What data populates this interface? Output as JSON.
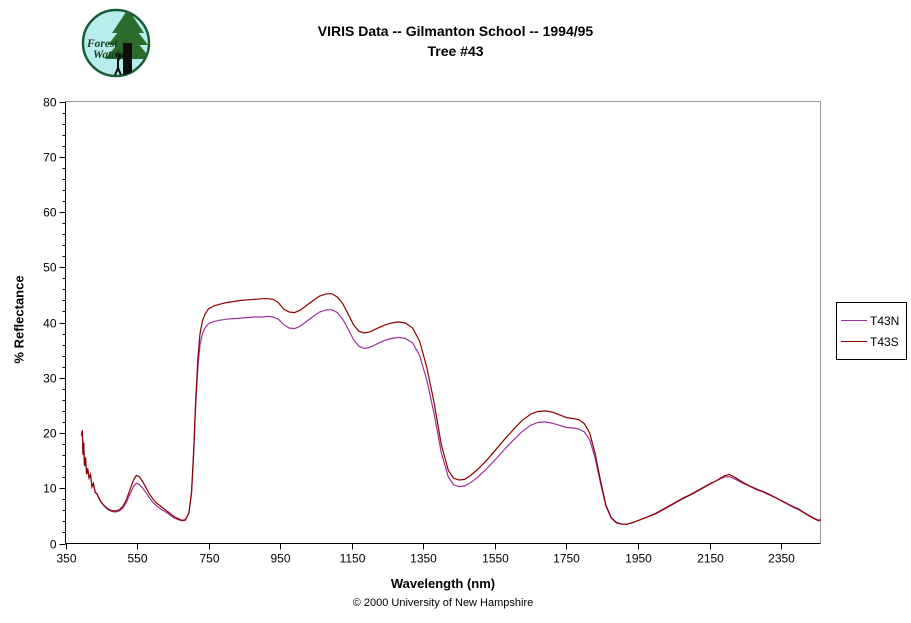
{
  "title": {
    "line1": "VIRIS Data -- Gilmanton School -- 1994/95",
    "line2": "Tree #43"
  },
  "logo": {
    "text_line1": "Forest",
    "text_line2": "Watch",
    "circle_fill": "#b9ecec",
    "ring_color": "#1a5c38",
    "foliage_color": "#2d6b2d"
  },
  "footer": {
    "text": "© 2000 University of New Hampshire"
  },
  "chart_data": {
    "type": "line",
    "title": "VIRIS Data -- Gilmanton School -- 1994/95 / Tree #43",
    "xlabel": "Wavelength (nm)",
    "ylabel": "% Reflectance",
    "xlim": [
      350,
      2460
    ],
    "ylim": [
      0,
      80
    ],
    "x_ticks": [
      350,
      550,
      750,
      950,
      1150,
      1350,
      1550,
      1750,
      1950,
      2150,
      2350
    ],
    "y_ticks": [
      0,
      10,
      20,
      30,
      40,
      50,
      60,
      70,
      80
    ],
    "y_minor_step": 2,
    "grid": false,
    "border_color": "#999999",
    "legend": {
      "position": "right-outside"
    },
    "series": [
      {
        "name": "T43N",
        "color": "#993399",
        "points": [
          [
            395,
            19.5
          ],
          [
            397,
            20.4
          ],
          [
            399,
            16.0
          ],
          [
            401,
            18.2
          ],
          [
            403,
            14.0
          ],
          [
            406,
            15.5
          ],
          [
            409,
            12.5
          ],
          [
            412,
            13.5
          ],
          [
            416,
            11.8
          ],
          [
            420,
            12.4
          ],
          [
            424,
            10.2
          ],
          [
            428,
            10.8
          ],
          [
            433,
            9.2
          ],
          [
            438,
            8.9
          ],
          [
            443,
            8.2
          ],
          [
            448,
            7.6
          ],
          [
            455,
            7.0
          ],
          [
            462,
            6.5
          ],
          [
            470,
            6.1
          ],
          [
            480,
            5.8
          ],
          [
            490,
            5.7
          ],
          [
            500,
            5.9
          ],
          [
            510,
            6.4
          ],
          [
            520,
            7.4
          ],
          [
            530,
            8.9
          ],
          [
            540,
            10.3
          ],
          [
            548,
            10.9
          ],
          [
            556,
            10.7
          ],
          [
            565,
            10.1
          ],
          [
            575,
            9.2
          ],
          [
            585,
            8.2
          ],
          [
            595,
            7.4
          ],
          [
            605,
            6.8
          ],
          [
            615,
            6.3
          ],
          [
            625,
            5.9
          ],
          [
            635,
            5.5
          ],
          [
            645,
            5.0
          ],
          [
            655,
            4.6
          ],
          [
            665,
            4.3
          ],
          [
            675,
            4.1
          ],
          [
            685,
            4.2
          ],
          [
            695,
            5.5
          ],
          [
            702,
            9.0
          ],
          [
            708,
            16.0
          ],
          [
            714,
            25.0
          ],
          [
            720,
            32.0
          ],
          [
            726,
            36.0
          ],
          [
            733,
            38.0
          ],
          [
            740,
            39.0
          ],
          [
            750,
            39.8
          ],
          [
            765,
            40.2
          ],
          [
            780,
            40.4
          ],
          [
            800,
            40.6
          ],
          [
            820,
            40.7
          ],
          [
            840,
            40.8
          ],
          [
            860,
            40.9
          ],
          [
            880,
            41.0
          ],
          [
            900,
            41.0
          ],
          [
            915,
            41.1
          ],
          [
            930,
            41.0
          ],
          [
            945,
            40.6
          ],
          [
            960,
            39.6
          ],
          [
            975,
            39.0
          ],
          [
            990,
            38.9
          ],
          [
            1005,
            39.3
          ],
          [
            1020,
            40.0
          ],
          [
            1040,
            41.0
          ],
          [
            1060,
            41.9
          ],
          [
            1080,
            42.3
          ],
          [
            1095,
            42.3
          ],
          [
            1110,
            41.8
          ],
          [
            1125,
            40.6
          ],
          [
            1140,
            38.8
          ],
          [
            1155,
            36.9
          ],
          [
            1170,
            35.7
          ],
          [
            1185,
            35.3
          ],
          [
            1200,
            35.5
          ],
          [
            1220,
            36.1
          ],
          [
            1240,
            36.7
          ],
          [
            1260,
            37.1
          ],
          [
            1280,
            37.3
          ],
          [
            1300,
            37.1
          ],
          [
            1320,
            36.3
          ],
          [
            1340,
            34.0
          ],
          [
            1360,
            29.5
          ],
          [
            1380,
            23.5
          ],
          [
            1400,
            16.5
          ],
          [
            1420,
            12.0
          ],
          [
            1435,
            10.6
          ],
          [
            1450,
            10.3
          ],
          [
            1465,
            10.4
          ],
          [
            1480,
            10.9
          ],
          [
            1500,
            11.9
          ],
          [
            1525,
            13.4
          ],
          [
            1550,
            15.1
          ],
          [
            1575,
            16.9
          ],
          [
            1600,
            18.6
          ],
          [
            1625,
            20.2
          ],
          [
            1650,
            21.4
          ],
          [
            1670,
            21.9
          ],
          [
            1690,
            22.0
          ],
          [
            1710,
            21.8
          ],
          [
            1730,
            21.4
          ],
          [
            1750,
            21.0
          ],
          [
            1770,
            20.9
          ],
          [
            1785,
            20.7
          ],
          [
            1800,
            20.2
          ],
          [
            1815,
            18.8
          ],
          [
            1830,
            15.5
          ],
          [
            1845,
            11.0
          ],
          [
            1860,
            6.8
          ],
          [
            1875,
            4.6
          ],
          [
            1890,
            3.7
          ],
          [
            1905,
            3.5
          ],
          [
            1920,
            3.5
          ],
          [
            1940,
            3.9
          ],
          [
            1960,
            4.4
          ],
          [
            1980,
            4.9
          ],
          [
            2000,
            5.5
          ],
          [
            2025,
            6.4
          ],
          [
            2050,
            7.3
          ],
          [
            2075,
            8.2
          ],
          [
            2100,
            9.0
          ],
          [
            2125,
            9.9
          ],
          [
            2150,
            10.8
          ],
          [
            2170,
            11.4
          ],
          [
            2190,
            12.0
          ],
          [
            2205,
            12.1
          ],
          [
            2220,
            11.7
          ],
          [
            2240,
            11.0
          ],
          [
            2260,
            10.4
          ],
          [
            2280,
            9.8
          ],
          [
            2300,
            9.3
          ],
          [
            2320,
            8.7
          ],
          [
            2340,
            8.1
          ],
          [
            2360,
            7.5
          ],
          [
            2380,
            6.8
          ],
          [
            2400,
            6.2
          ],
          [
            2415,
            5.6
          ],
          [
            2430,
            5.0
          ],
          [
            2445,
            4.5
          ],
          [
            2455,
            4.2
          ],
          [
            2460,
            4.4
          ]
        ]
      },
      {
        "name": "T43S",
        "color": "#8B0000",
        "points": [
          [
            395,
            19.5
          ],
          [
            397,
            20.5
          ],
          [
            399,
            16.1
          ],
          [
            401,
            18.3
          ],
          [
            403,
            14.1
          ],
          [
            406,
            15.6
          ],
          [
            409,
            12.6
          ],
          [
            412,
            13.6
          ],
          [
            416,
            11.9
          ],
          [
            420,
            12.5
          ],
          [
            424,
            10.3
          ],
          [
            428,
            10.9
          ],
          [
            433,
            9.3
          ],
          [
            438,
            9.0
          ],
          [
            443,
            8.3
          ],
          [
            448,
            7.7
          ],
          [
            455,
            7.1
          ],
          [
            462,
            6.6
          ],
          [
            470,
            6.2
          ],
          [
            480,
            5.9
          ],
          [
            490,
            5.9
          ],
          [
            500,
            6.1
          ],
          [
            510,
            6.7
          ],
          [
            520,
            7.9
          ],
          [
            530,
            9.7
          ],
          [
            540,
            11.5
          ],
          [
            548,
            12.3
          ],
          [
            556,
            12.1
          ],
          [
            565,
            11.3
          ],
          [
            575,
            10.1
          ],
          [
            585,
            8.9
          ],
          [
            595,
            8.0
          ],
          [
            605,
            7.3
          ],
          [
            615,
            6.8
          ],
          [
            625,
            6.3
          ],
          [
            635,
            5.8
          ],
          [
            645,
            5.3
          ],
          [
            655,
            4.8
          ],
          [
            665,
            4.5
          ],
          [
            675,
            4.2
          ],
          [
            685,
            4.3
          ],
          [
            695,
            5.6
          ],
          [
            702,
            9.2
          ],
          [
            708,
            16.5
          ],
          [
            714,
            26.0
          ],
          [
            720,
            33.5
          ],
          [
            726,
            38.0
          ],
          [
            733,
            40.3
          ],
          [
            740,
            41.5
          ],
          [
            750,
            42.5
          ],
          [
            765,
            43.0
          ],
          [
            780,
            43.3
          ],
          [
            800,
            43.6
          ],
          [
            820,
            43.8
          ],
          [
            840,
            44.0
          ],
          [
            860,
            44.1
          ],
          [
            880,
            44.2
          ],
          [
            900,
            44.3
          ],
          [
            915,
            44.3
          ],
          [
            930,
            44.2
          ],
          [
            945,
            43.6
          ],
          [
            960,
            42.4
          ],
          [
            975,
            41.9
          ],
          [
            990,
            41.8
          ],
          [
            1005,
            42.2
          ],
          [
            1020,
            42.9
          ],
          [
            1040,
            43.9
          ],
          [
            1060,
            44.8
          ],
          [
            1080,
            45.2
          ],
          [
            1095,
            45.2
          ],
          [
            1110,
            44.6
          ],
          [
            1125,
            43.4
          ],
          [
            1140,
            41.5
          ],
          [
            1155,
            39.6
          ],
          [
            1170,
            38.4
          ],
          [
            1185,
            38.1
          ],
          [
            1200,
            38.3
          ],
          [
            1220,
            38.9
          ],
          [
            1240,
            39.5
          ],
          [
            1260,
            39.9
          ],
          [
            1280,
            40.1
          ],
          [
            1300,
            39.9
          ],
          [
            1320,
            39.0
          ],
          [
            1340,
            36.6
          ],
          [
            1360,
            31.8
          ],
          [
            1380,
            25.5
          ],
          [
            1400,
            18.0
          ],
          [
            1420,
            13.2
          ],
          [
            1435,
            11.8
          ],
          [
            1450,
            11.5
          ],
          [
            1465,
            11.6
          ],
          [
            1480,
            12.2
          ],
          [
            1500,
            13.3
          ],
          [
            1525,
            14.9
          ],
          [
            1550,
            16.8
          ],
          [
            1575,
            18.7
          ],
          [
            1600,
            20.5
          ],
          [
            1625,
            22.2
          ],
          [
            1650,
            23.4
          ],
          [
            1670,
            23.9
          ],
          [
            1690,
            24.0
          ],
          [
            1710,
            23.8
          ],
          [
            1730,
            23.3
          ],
          [
            1750,
            22.8
          ],
          [
            1770,
            22.6
          ],
          [
            1785,
            22.4
          ],
          [
            1800,
            21.7
          ],
          [
            1815,
            20.0
          ],
          [
            1830,
            16.3
          ],
          [
            1845,
            11.5
          ],
          [
            1860,
            7.0
          ],
          [
            1875,
            4.7
          ],
          [
            1890,
            3.8
          ],
          [
            1905,
            3.5
          ],
          [
            1920,
            3.5
          ],
          [
            1940,
            3.9
          ],
          [
            1960,
            4.4
          ],
          [
            1980,
            4.9
          ],
          [
            2000,
            5.4
          ],
          [
            2025,
            6.3
          ],
          [
            2050,
            7.2
          ],
          [
            2075,
            8.1
          ],
          [
            2100,
            8.9
          ],
          [
            2125,
            9.8
          ],
          [
            2150,
            10.7
          ],
          [
            2170,
            11.4
          ],
          [
            2190,
            12.2
          ],
          [
            2205,
            12.5
          ],
          [
            2220,
            12.0
          ],
          [
            2240,
            11.2
          ],
          [
            2260,
            10.5
          ],
          [
            2280,
            9.9
          ],
          [
            2300,
            9.4
          ],
          [
            2320,
            8.8
          ],
          [
            2340,
            8.1
          ],
          [
            2360,
            7.4
          ],
          [
            2380,
            6.7
          ],
          [
            2400,
            6.1
          ],
          [
            2415,
            5.5
          ],
          [
            2430,
            4.9
          ],
          [
            2445,
            4.4
          ],
          [
            2455,
            4.1
          ],
          [
            2460,
            4.3
          ]
        ]
      }
    ]
  }
}
